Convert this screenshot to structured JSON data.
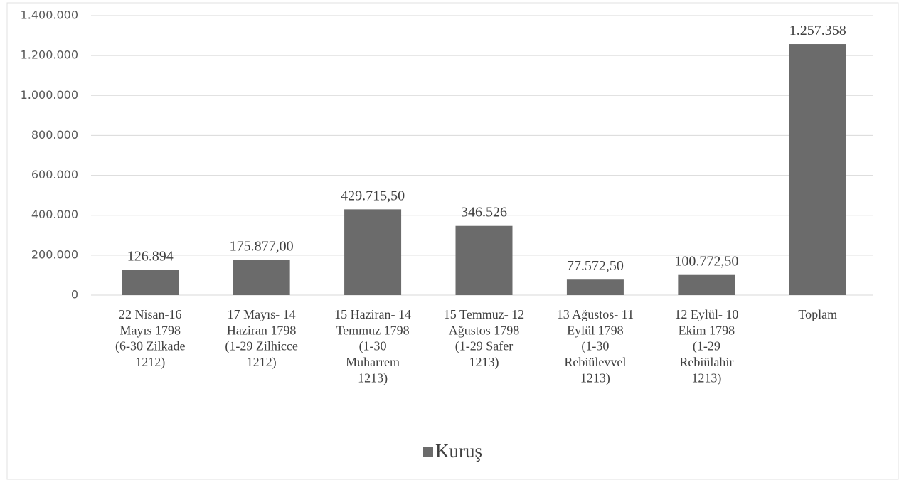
{
  "chart_data": {
    "type": "bar",
    "categories": [
      [
        "22 Nisan-16",
        "Mayıs 1798",
        "(6-30 Zilkade",
        "1212)"
      ],
      [
        "17 Mayıs- 14",
        "Haziran  1798",
        "(1-29 Zilhicce",
        "1212)"
      ],
      [
        "15 Haziran- 14",
        "Temmuz  1798",
        "(1-30",
        "Muharrem",
        "1213)"
      ],
      [
        "15 Temmuz- 12",
        "Ağustos  1798",
        "(1-29 Safer",
        "1213)"
      ],
      [
        "13 Ağustos- 11",
        "Eylül  1798",
        "(1-30",
        "Rebiülevvel",
        "1213)"
      ],
      [
        "12 Eylül- 10",
        "Ekim  1798",
        "(1-29",
        "Rebiülahir",
        "1213)"
      ],
      [
        "Toplam"
      ]
    ],
    "series": [
      {
        "name": "Kuruş",
        "color": "#6b6b6b",
        "values": [
          126894,
          175877,
          429715.5,
          346526,
          77572.5,
          100772.5,
          1257358
        ],
        "value_labels": [
          "126.894",
          "175.877,00",
          "429.715,50",
          "346.526",
          "77.572,50",
          "100.772,50",
          "1.257.358"
        ]
      }
    ],
    "ylim": [
      0,
      1400000
    ],
    "yticks": [
      0,
      {
        "value": 200000,
        "label": "200.000"
      },
      {
        "value": 400000,
        "label": "400.000"
      },
      {
        "value": 600000,
        "label": "600.000"
      },
      {
        "value": 800000,
        "label": "800.000"
      },
      {
        "value": 1000000,
        "label": "1.000.000"
      },
      {
        "value": 1200000,
        "label": "1.200.000"
      },
      {
        "value": 1400000,
        "label": "1.400.000"
      }
    ],
    "grid": true,
    "legend": "bottom"
  }
}
